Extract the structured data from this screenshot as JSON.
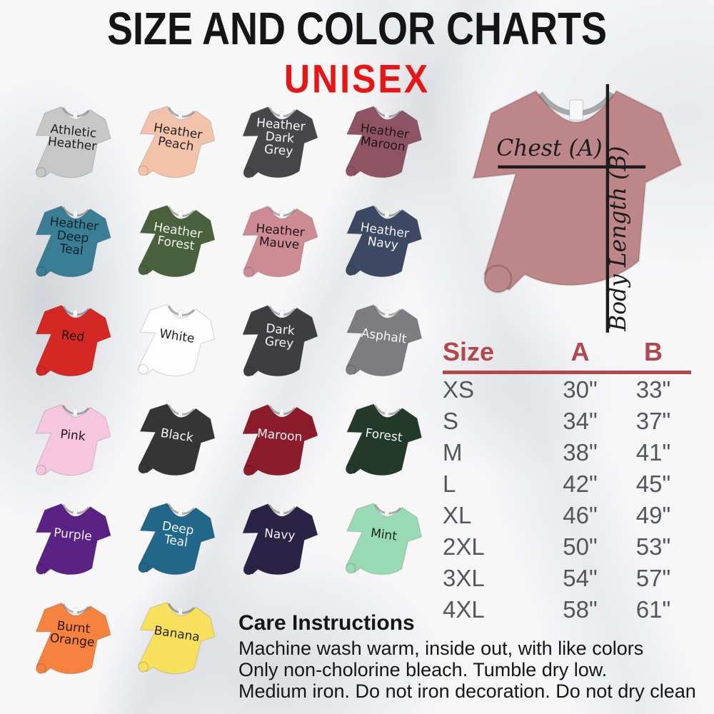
{
  "header": {
    "title": "SIZE AND COLOR CHARTS",
    "subtitle": "UNISEX",
    "title_color": "#151515",
    "subtitle_color": "#e91414"
  },
  "shirts": [
    {
      "name": "Athletic Heather",
      "display": "Athletic\nHeather",
      "color": "#c7c7c7",
      "label_color": "#1f1f1f"
    },
    {
      "name": "Heather Peach",
      "display": "Heather\nPeach",
      "color": "#f2c3aa",
      "label_color": "#242424"
    },
    {
      "name": "Heather Dark Grey",
      "display": "Heather\nDark\nGrey",
      "color": "#47474a",
      "label_color": "#f5f5f5"
    },
    {
      "name": "Heather Maroon",
      "display": "Heather\nMaroon",
      "color": "#8e5365",
      "label_color": "#221418"
    },
    {
      "name": "Heather Deep Teal",
      "display": "Heather\nDeep\nTeal",
      "color": "#3a7e96",
      "label_color": "#0f2129"
    },
    {
      "name": "Heather Forest",
      "display": "Heather\nForest",
      "color": "#4a613d",
      "label_color": "#f2f4ee"
    },
    {
      "name": "Heather Mauve",
      "display": "Heather\nMauve",
      "color": "#cd8c93",
      "label_color": "#1f1315"
    },
    {
      "name": "Heather Navy",
      "display": "Heather\nNavy",
      "color": "#3d4963",
      "label_color": "#f2f3f6"
    },
    {
      "name": "Red",
      "display": "Red",
      "color": "#d52723",
      "label_color": "#1c0a0a"
    },
    {
      "name": "White",
      "display": "White",
      "color": "#fefefe",
      "label_color": "#1e1e1e"
    },
    {
      "name": "Dark Grey",
      "display": "Dark\nGrey",
      "color": "#3e3e40",
      "label_color": "#f4f4f4"
    },
    {
      "name": "Asphalt",
      "display": "Asphalt",
      "color": "#7d7d81",
      "label_color": "#f6f6f6"
    },
    {
      "name": "Pink",
      "display": "Pink",
      "color": "#f6c6df",
      "label_color": "#211218"
    },
    {
      "name": "Black",
      "display": "Black",
      "color": "#353535",
      "label_color": "#f4f4f4"
    },
    {
      "name": "Maroon",
      "display": "Maroon",
      "color": "#8c1b2b",
      "label_color": "#f7f1f1"
    },
    {
      "name": "Forest",
      "display": "Forest",
      "color": "#23392c",
      "label_color": "#eef4ef"
    },
    {
      "name": "Purple",
      "display": "Purple",
      "color": "#5b2285",
      "label_color": "#f4eef8"
    },
    {
      "name": "Deep Teal",
      "display": "Deep\nTeal",
      "color": "#21678a",
      "label_color": "#eff5f8"
    },
    {
      "name": "Navy",
      "display": "Navy",
      "color": "#2a2345",
      "label_color": "#f1f0f5"
    },
    {
      "name": "Mint",
      "display": "Mint",
      "color": "#97dab3",
      "label_color": "#15241b"
    },
    {
      "name": "Burnt Orange",
      "display": "Burnt\nOrange",
      "color": "#f5823e",
      "label_color": "#2a1607"
    },
    {
      "name": "Banana",
      "display": "Banana",
      "color": "#f7e15c",
      "label_color": "#2a2408"
    }
  ],
  "measurement_shirt": {
    "color": "#bd8789",
    "chest_label": "Chest (A)",
    "length_label": "Body Length (B)",
    "line_color": "#1c1c1c"
  },
  "size_chart": {
    "headers": [
      "Size",
      "A",
      "B"
    ],
    "accent_color": "#b2484e",
    "value_color": "#55565a"
  },
  "care": {
    "heading": "Care Instructions",
    "lines": [
      "Machine wash warm, inside out, with like colors",
      "Only non-cholorine bleach. Tumble dry low.",
      "Medium iron. Do not iron decoration. Do not dry clean"
    ]
  },
  "chart_data": {
    "type": "table",
    "title": "SIZE AND COLOR CHARTS",
    "subtitle": "UNISEX",
    "columns": [
      "Size",
      "A",
      "B"
    ],
    "rows": [
      [
        "XS",
        "30\"",
        "33\""
      ],
      [
        "S",
        "34\"",
        "37\""
      ],
      [
        "M",
        "38\"",
        "41\""
      ],
      [
        "L",
        "42\"",
        "45\""
      ],
      [
        "XL",
        "46\"",
        "49\""
      ],
      [
        "2XL",
        "50\"",
        "53\""
      ],
      [
        "3XL",
        "54\"",
        "57\""
      ],
      [
        "4XL",
        "58\"",
        "61\""
      ]
    ],
    "measurements": {
      "A": "Chest (A)",
      "B": "Body Length (B)"
    },
    "color_options": [
      "Athletic Heather",
      "Heather Peach",
      "Heather Dark Grey",
      "Heather Maroon",
      "Heather Deep Teal",
      "Heather Forest",
      "Heather Mauve",
      "Heather Navy",
      "Red",
      "White",
      "Dark Grey",
      "Asphalt",
      "Pink",
      "Black",
      "Maroon",
      "Forest",
      "Purple",
      "Deep Teal",
      "Navy",
      "Mint",
      "Burnt Orange",
      "Banana"
    ]
  }
}
